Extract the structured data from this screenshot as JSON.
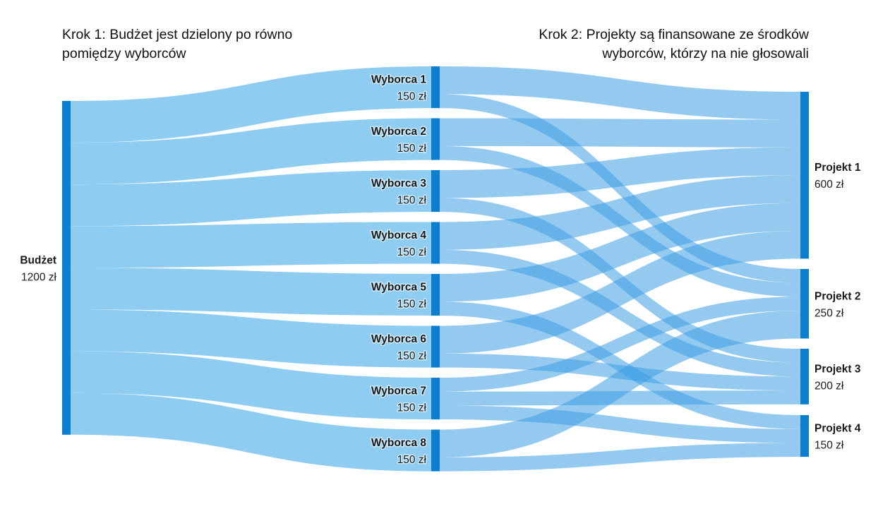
{
  "headings": {
    "step1": [
      "Krok 1: Budżet jest dzielony po równo",
      "pomiędzy wyborców"
    ],
    "step2": [
      "Krok 2: Projekty są finansowane ze środków",
      "wyborców, którzy na nie głosowali"
    ]
  },
  "colors": {
    "node": "#0a7fcf",
    "link": "#8ecdf1",
    "link_overlap": "#4aa5e4"
  },
  "budget": {
    "name": "Budżet",
    "value_label": "1200 zł",
    "value": 1200
  },
  "voters": [
    {
      "id": "w1",
      "name": "Wyborca 1",
      "value_label": "150 zł",
      "value": 150
    },
    {
      "id": "w2",
      "name": "Wyborca 2",
      "value_label": "150 zł",
      "value": 150
    },
    {
      "id": "w3",
      "name": "Wyborca 3",
      "value_label": "150 zł",
      "value": 150
    },
    {
      "id": "w4",
      "name": "Wyborca 4",
      "value_label": "150 zł",
      "value": 150
    },
    {
      "id": "w5",
      "name": "Wyborca 5",
      "value_label": "150 zł",
      "value": 150
    },
    {
      "id": "w6",
      "name": "Wyborca 6",
      "value_label": "150 zł",
      "value": 150
    },
    {
      "id": "w7",
      "name": "Wyborca 7",
      "value_label": "150 zł",
      "value": 150
    },
    {
      "id": "w8",
      "name": "Wyborca 8",
      "value_label": "150 zł",
      "value": 150
    }
  ],
  "projects": [
    {
      "id": "p1",
      "name": "Projekt 1",
      "value_label": "600 zł",
      "value": 600
    },
    {
      "id": "p2",
      "name": "Projekt 2",
      "value_label": "250 zł",
      "value": 250
    },
    {
      "id": "p3",
      "name": "Projekt 3",
      "value_label": "200 zł",
      "value": 200
    },
    {
      "id": "p4",
      "name": "Projekt 4",
      "value_label": "150 zł",
      "value": 150
    }
  ],
  "flows": [
    {
      "from": "w1",
      "to": "p1",
      "value": 100
    },
    {
      "from": "w1",
      "to": "p2",
      "value": 50
    },
    {
      "from": "w2",
      "to": "p1",
      "value": 100
    },
    {
      "from": "w2",
      "to": "p2",
      "value": 50
    },
    {
      "from": "w3",
      "to": "p1",
      "value": 100
    },
    {
      "from": "w3",
      "to": "p3",
      "value": 50
    },
    {
      "from": "w4",
      "to": "p1",
      "value": 100
    },
    {
      "from": "w4",
      "to": "p3",
      "value": 50
    },
    {
      "from": "w5",
      "to": "p1",
      "value": 100
    },
    {
      "from": "w5",
      "to": "p4",
      "value": 50
    },
    {
      "from": "w6",
      "to": "p1",
      "value": 100
    },
    {
      "from": "w6",
      "to": "p3",
      "value": 50
    },
    {
      "from": "w7",
      "to": "p2",
      "value": 50
    },
    {
      "from": "w7",
      "to": "p3",
      "value": 50
    },
    {
      "from": "w7",
      "to": "p4",
      "value": 50
    },
    {
      "from": "w8",
      "to": "p2",
      "value": 100
    },
    {
      "from": "w8",
      "to": "p4",
      "value": 50
    }
  ]
}
